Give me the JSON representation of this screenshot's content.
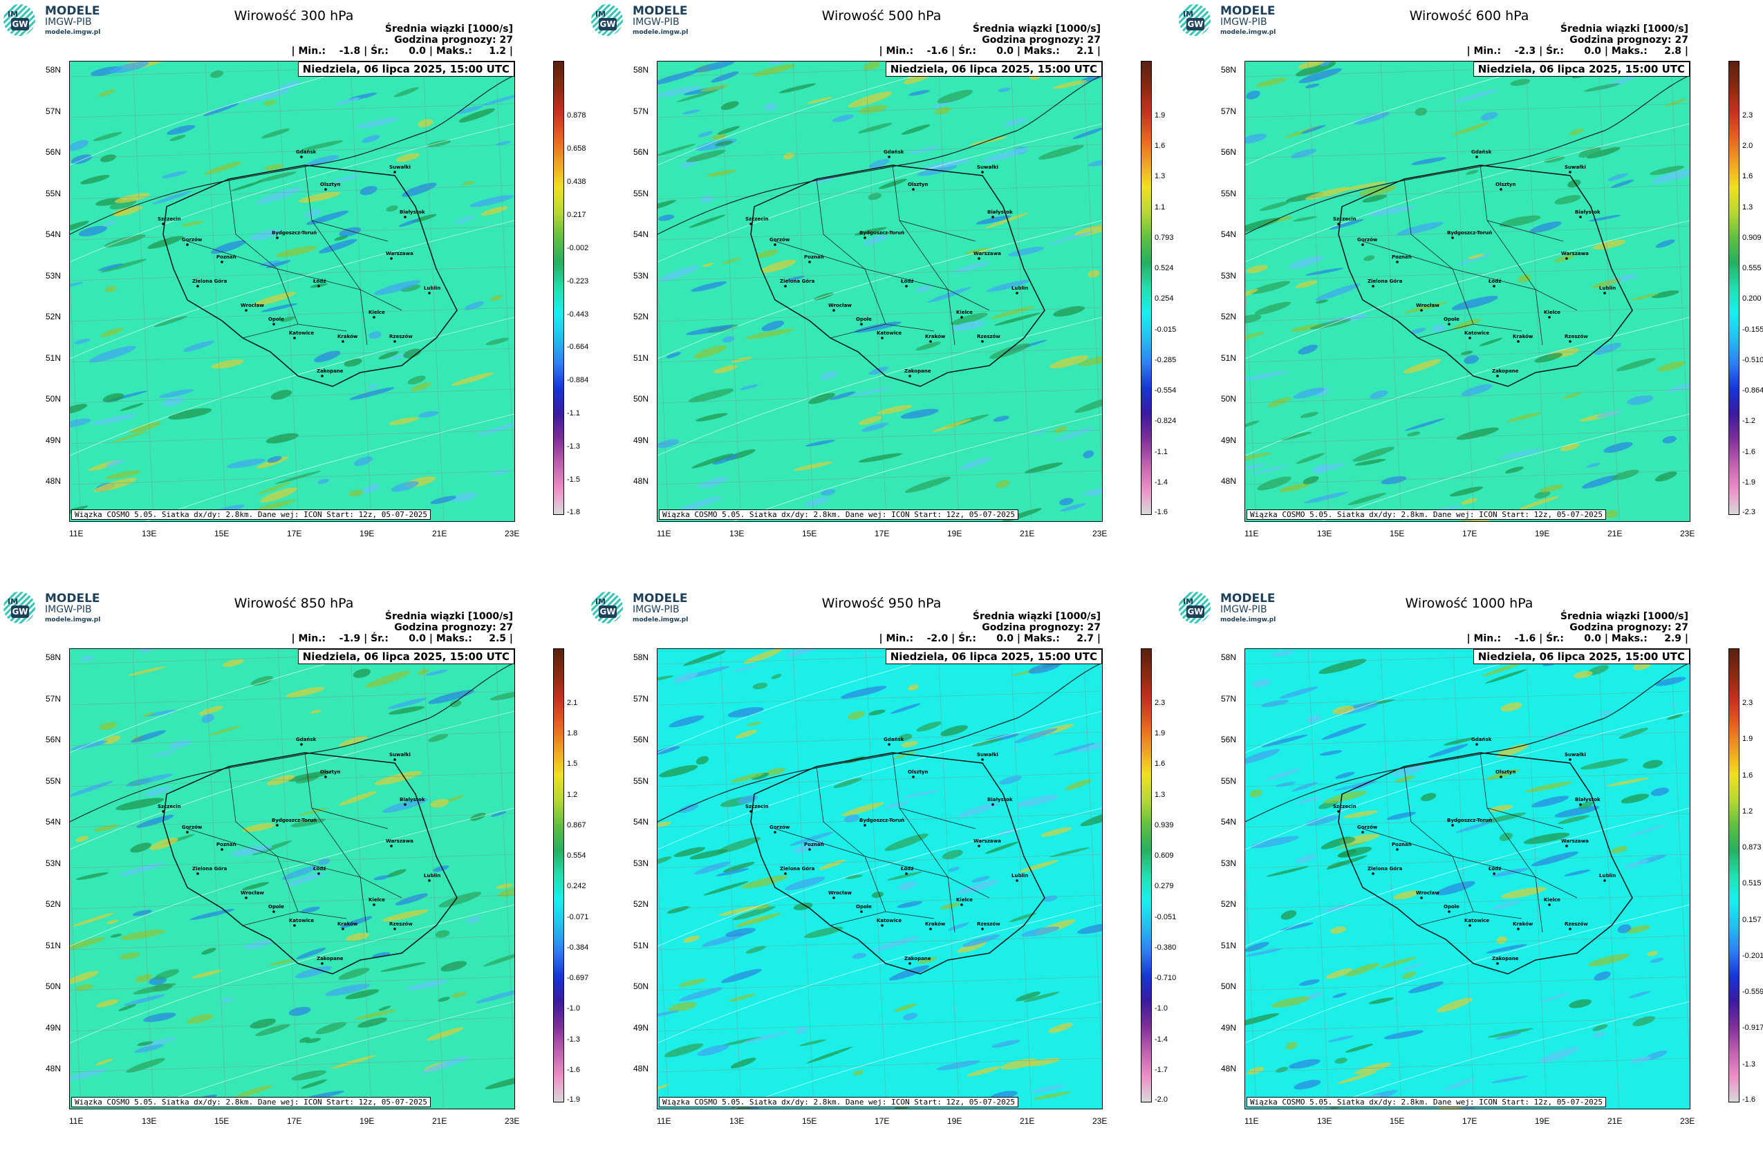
{
  "logo": {
    "line1": "MODELE",
    "line2": "IMGW-PIB",
    "line3": "modele.imgw.pl",
    "im": "IM",
    "gw": "GW"
  },
  "common": {
    "title_right": "Średnia wiązki [1000/s]",
    "forecast_hour": "Godzina prognozy: 27",
    "date": "Niedziela, 06 lipca 2025, 15:00 UTC",
    "footer": "Wiązka COSMO 5.05. Siatka dx/dy: 2.8km. Dane wej: ICON Start: 12z, 05-07-2025",
    "lat_ticks": [
      "58N",
      "57N",
      "56N",
      "55N",
      "54N",
      "53N",
      "52N",
      "51N",
      "50N",
      "49N",
      "48N"
    ],
    "lon_ticks": [
      "11E",
      "13E",
      "15E",
      "17E",
      "19E",
      "21E",
      "23E"
    ],
    "cities": [
      "Gdańsk",
      "Suwałki",
      "Olsztyn",
      "Białystok",
      "Szczecin",
      "Bydgoszcz-Toruń",
      "Gorzów",
      "Poznań",
      "Warszawa",
      "Zielona Góra",
      "Łódź",
      "Lublin",
      "Wrocław",
      "Kielce",
      "Opole",
      "Katowice",
      "Kraków",
      "Rzeszów",
      "Zakopane"
    ]
  },
  "colors": {
    "bg_upper": "#35e8b5",
    "bg_lower": "#1cefe8",
    "colorbar": [
      "#d9d9d9",
      "#ee8fc8",
      "#c060b0",
      "#7e2f9a",
      "#3b1aa0",
      "#1535d8",
      "#2f7ff5",
      "#20c0f0",
      "#18f0f0",
      "#20e0b0",
      "#25b060",
      "#60c040",
      "#b8d830",
      "#f0e020",
      "#f0a020",
      "#e86020",
      "#c83020",
      "#8a2a10",
      "#5a2010"
    ]
  },
  "panels": [
    {
      "title": "Wirowość 300 hPa",
      "stats": "| Min.:    -1.8 | Śr.:      0.0 | Maks.:     1.2 |",
      "cbar_labels": [
        "0.878",
        "0.658",
        "0.438",
        "0.217",
        "-0.002",
        "-0.223",
        "-0.443",
        "-0.664",
        "-0.884",
        "-1.1",
        "-1.3",
        "-1.5",
        "-1.8"
      ]
    },
    {
      "title": "Wirowość 500 hPa",
      "stats": "| Min.:    -1.6 | Śr.:      0.0 | Maks.:     2.1 |",
      "cbar_labels": [
        "1.9",
        "1.6",
        "1.3",
        "1.1",
        "0.793",
        "0.524",
        "0.254",
        "-0.015",
        "-0.285",
        "-0.554",
        "-0.824",
        "-1.1",
        "-1.4",
        "-1.6"
      ]
    },
    {
      "title": "Wirowość 600 hPa",
      "stats": "| Min.:    -2.3 | Śr.:      0.0 | Maks.:     2.8 |",
      "cbar_labels": [
        "2.3",
        "2.0",
        "1.6",
        "1.3",
        "0.909",
        "0.555",
        "0.200",
        "-0.155",
        "-0.510",
        "-0.864",
        "-1.2",
        "-1.6",
        "-1.9",
        "-2.3"
      ]
    },
    {
      "title": "Wirowość 850 hPa",
      "stats": "| Min.:    -1.9 | Śr.:      0.0 | Maks.:     2.5 |",
      "cbar_labels": [
        "2.1",
        "1.8",
        "1.5",
        "1.2",
        "0.867",
        "0.554",
        "0.242",
        "-0.071",
        "-0.384",
        "-0.697",
        "-1.0",
        "-1.3",
        "-1.6",
        "-1.9"
      ]
    },
    {
      "title": "Wirowość 950 hPa",
      "stats": "| Min.:    -2.0 | Śr.:      0.0 | Maks.:     2.7 |",
      "cbar_labels": [
        "2.3",
        "1.9",
        "1.6",
        "1.3",
        "0.939",
        "0.609",
        "0.279",
        "-0.051",
        "-0.380",
        "-0.710",
        "-1.0",
        "-1.4",
        "-1.7",
        "-2.0"
      ]
    },
    {
      "title": "Wirowość 1000 hPa",
      "stats": "| Min.:    -1.6 | Śr.:      0.0 | Maks.:     2.9 |",
      "cbar_labels": [
        "2.3",
        "1.9",
        "1.6",
        "1.2",
        "0.873",
        "0.515",
        "0.157",
        "-0.201",
        "-0.559",
        "-0.917",
        "-1.3",
        "-1.6"
      ]
    }
  ]
}
